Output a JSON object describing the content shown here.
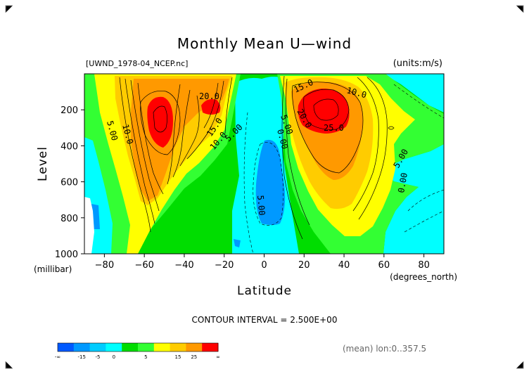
{
  "chart_data": {
    "type": "contour",
    "title": "Monthly Mean U—wind",
    "file_label": "[UWND_1978-04_NCEP.nc]",
    "units_label": "(units:m/s)",
    "ylabel": "Level",
    "yunit": "(millibar)",
    "xlabel": "Latitude",
    "xunit": "(degrees_north)",
    "contour_interval_label": "CONTOUR INTERVAL = 2.500E+00",
    "mean_label": "(mean) lon:0..357.5",
    "xlim": [
      -90,
      90
    ],
    "ylim": [
      1000,
      0
    ],
    "xticks": [
      -80,
      -60,
      -40,
      -20,
      0,
      20,
      40,
      60,
      80
    ],
    "yticks": [
      200,
      400,
      600,
      800,
      1000
    ],
    "colorbar": {
      "colors": [
        "#0059ff",
        "#0099ff",
        "#00ccff",
        "#00ffff",
        "#00dd00",
        "#33ff33",
        "#ffff00",
        "#ffcc00",
        "#ff9900",
        "#ff0000"
      ],
      "tick_labels": [
        "-∞",
        "-15",
        "-5",
        "0",
        "5",
        "15",
        "25",
        "∞"
      ]
    },
    "jet_maxima": [
      {
        "lat": -52,
        "level": 250,
        "value": 27.5
      },
      {
        "lat": -27,
        "level": 185,
        "value": 25
      },
      {
        "lat": 30,
        "level": 200,
        "value": 32
      }
    ],
    "contour_labels": [
      {
        "text": "20.0",
        "lat": -28,
        "level": 120
      },
      {
        "text": "15.0",
        "lat": 20,
        "level": 110
      },
      {
        "text": "10.0",
        "lat": 43,
        "level": 105
      },
      {
        "text": "10.0",
        "lat": -67,
        "level": 310
      },
      {
        "text": "5.00",
        "lat": -76,
        "level": 330
      },
      {
        "text": "15.0",
        "lat": -24,
        "level": 320
      },
      {
        "text": "10.0",
        "lat": -22,
        "level": 390
      },
      {
        "text": "5.00",
        "lat": -17,
        "level": 360
      },
      {
        "text": "20.0",
        "lat": 17,
        "level": 210
      },
      {
        "text": "25.0",
        "lat": 33,
        "level": 290
      },
      {
        "text": "5.00",
        "lat": 10,
        "level": 280
      },
      {
        "text": "0.00",
        "lat": 9,
        "level": 340
      },
      {
        "text": "5.00",
        "lat": 65,
        "level": 470
      },
      {
        "text": "5.00",
        "lat": 0,
        "level": 770
      },
      {
        "text": "0.00",
        "lat": 61,
        "level": 720
      }
    ]
  }
}
